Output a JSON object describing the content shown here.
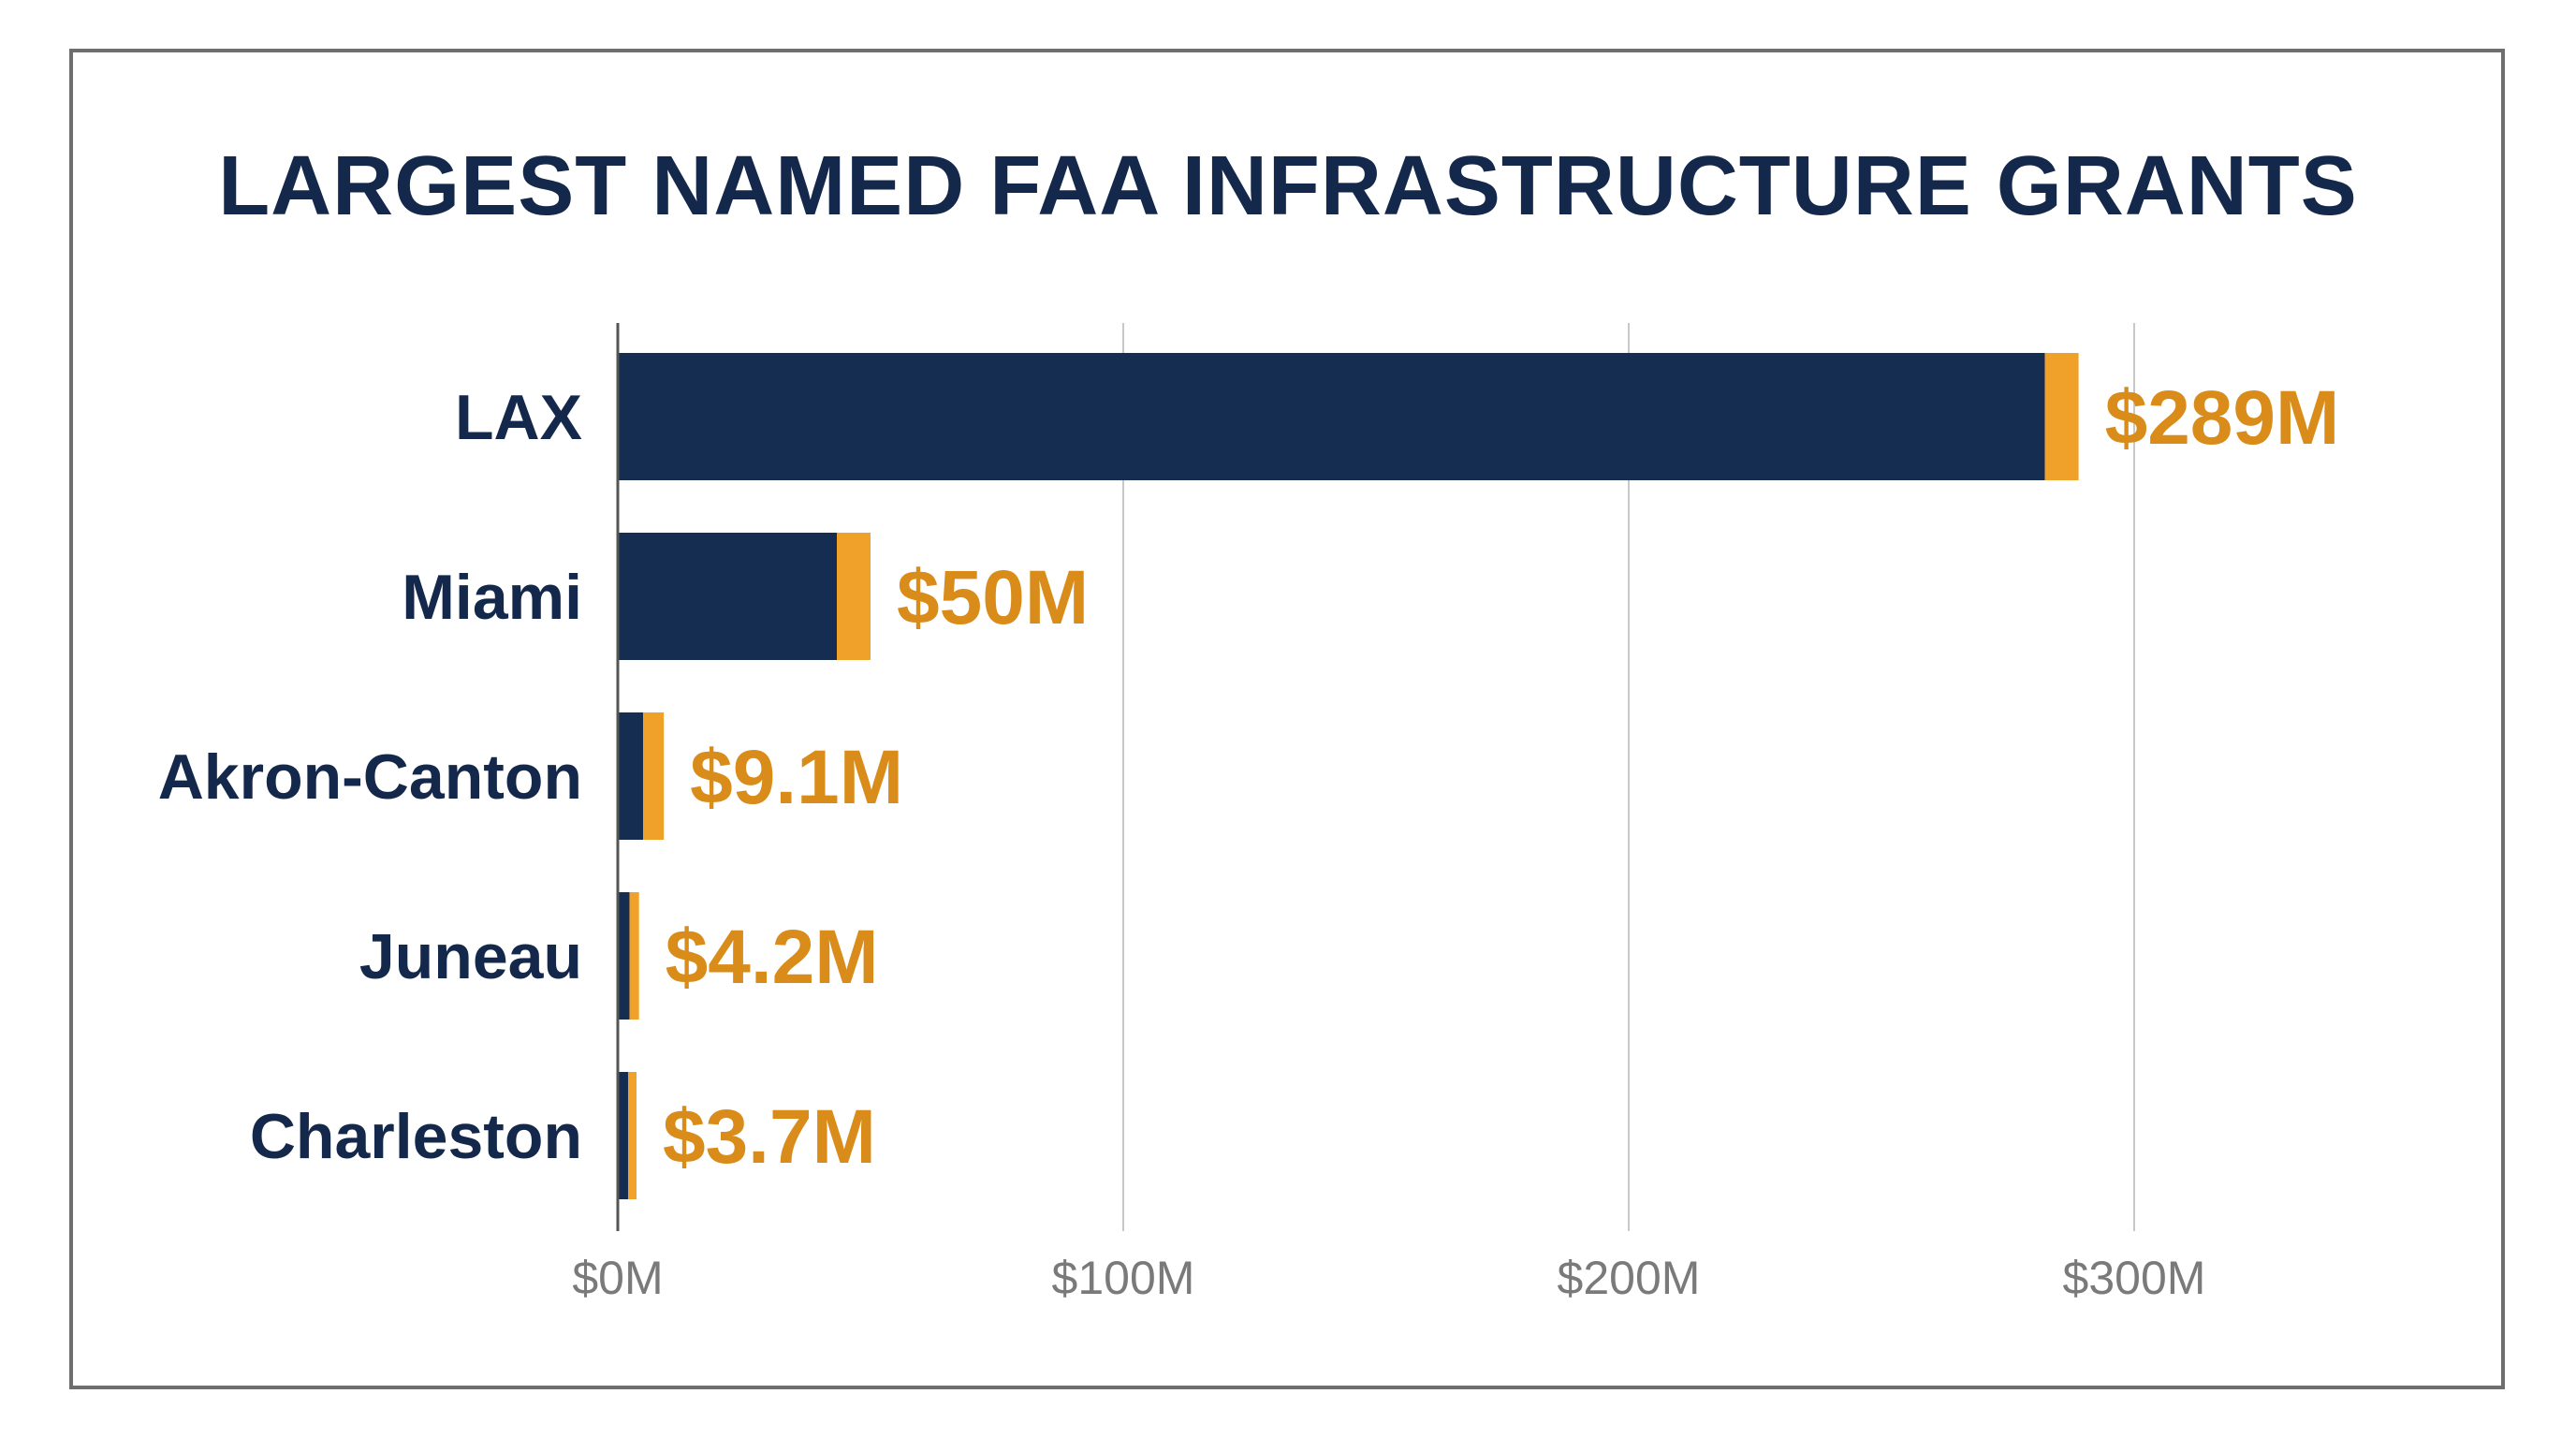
{
  "chart_data": {
    "type": "bar",
    "orientation": "horizontal",
    "title": "LARGEST NAMED FAA INFRASTRUCTURE GRANTS",
    "categories": [
      "LAX",
      "Miami",
      "Akron-Canton",
      "Juneau",
      "Charleston"
    ],
    "values": [
      289,
      50,
      9.1,
      4.2,
      3.7
    ],
    "value_labels": [
      "$289M",
      "$50M",
      "$9.1M",
      "$4.2M",
      "$3.7M"
    ],
    "xlim": [
      0,
      300
    ],
    "xticks": [
      0,
      100,
      200,
      300
    ],
    "xtick_labels": [
      "$0M",
      "$100M",
      "$200M",
      "$300M"
    ],
    "grid": true,
    "legend": "none",
    "colors": {
      "bar": "#162d52",
      "bar_tip": "#f0a12a",
      "value_label": "#d98c19",
      "grid": "#c8c8c8",
      "axis": "#555555"
    }
  }
}
